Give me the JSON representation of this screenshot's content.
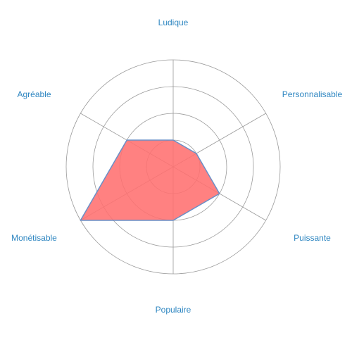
{
  "chart_data": {
    "type": "radar",
    "title": "",
    "axes": [
      "Ludique",
      "Personnalisable",
      "Puissante",
      "Populaire",
      "Monétisable",
      "Agréable"
    ],
    "series": [
      {
        "values": [
          1,
          1,
          2,
          2,
          4,
          2
        ],
        "color": "#ff6f6f",
        "stroke": "#6a8fc7"
      }
    ],
    "r_range": [
      0,
      4
    ],
    "rings": 4,
    "grid": true,
    "grid_color": "#9a9a9a",
    "label_color": "#2e86c1"
  }
}
